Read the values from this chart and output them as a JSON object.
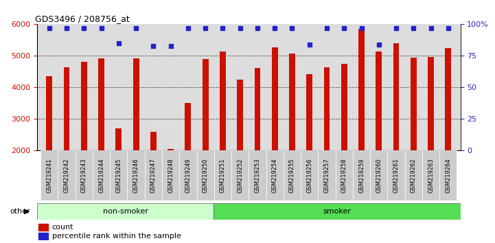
{
  "title": "GDS3496 / 208756_at",
  "categories": [
    "GSM219241",
    "GSM219242",
    "GSM219243",
    "GSM219244",
    "GSM219245",
    "GSM219246",
    "GSM219247",
    "GSM219248",
    "GSM219249",
    "GSM219250",
    "GSM219251",
    "GSM219252",
    "GSM219253",
    "GSM219254",
    "GSM219255",
    "GSM219256",
    "GSM219257",
    "GSM219258",
    "GSM219259",
    "GSM219260",
    "GSM219261",
    "GSM219262",
    "GSM219263",
    "GSM219264"
  ],
  "bar_values": [
    4350,
    4650,
    4820,
    4930,
    2700,
    4920,
    2600,
    2060,
    3520,
    4910,
    5140,
    4240,
    4620,
    5280,
    5080,
    4430,
    4640,
    4750,
    5850,
    5130,
    5390,
    4940,
    4970,
    5250
  ],
  "percentile_values": [
    97,
    97,
    97,
    97,
    85,
    97,
    83,
    83,
    97,
    97,
    97,
    97,
    97,
    97,
    97,
    84,
    97,
    97,
    97,
    84,
    97,
    97,
    97,
    97
  ],
  "bar_color": "#cc1100",
  "dot_color": "#2222cc",
  "ylim_left": [
    2000,
    6000
  ],
  "ylim_right": [
    0,
    100
  ],
  "yticks_left": [
    2000,
    3000,
    4000,
    5000,
    6000
  ],
  "yticks_right": [
    0,
    25,
    50,
    75,
    100
  ],
  "background_color": "#ffffff",
  "plot_bg_color": "#dddddd",
  "legend_items": [
    "count",
    "percentile rank within the sample"
  ],
  "group_colors": {
    "non-smoker": "#ccffcc",
    "smoker": "#55dd55"
  },
  "ns_range": [
    0,
    10
  ],
  "sm_range": [
    10,
    24
  ],
  "ylabel_left_color": "#cc1100",
  "ylabel_right_color": "#2222cc"
}
